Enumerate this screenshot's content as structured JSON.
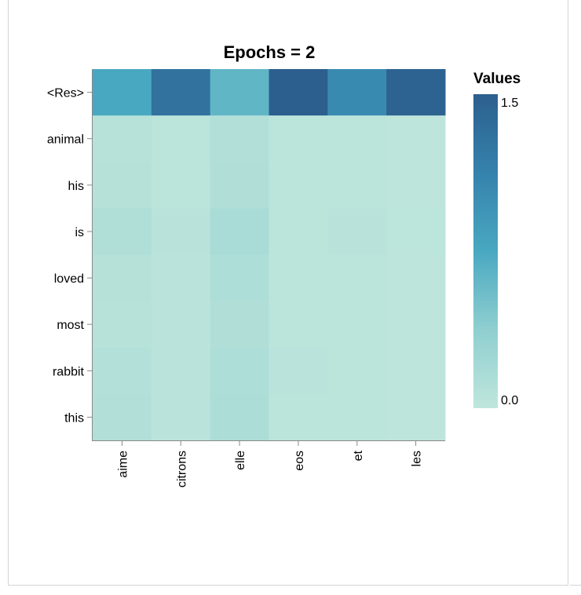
{
  "chart_data": {
    "type": "heatmap",
    "title": "Epochs = 2",
    "x_categories": [
      "aime",
      "citrons",
      "elle",
      "eos",
      "et",
      "les"
    ],
    "y_categories": [
      "<Res>",
      "animal",
      "his",
      "is",
      "loved",
      "most",
      "rabbit",
      "this"
    ],
    "values": [
      [
        0.75,
        1.3,
        0.62,
        1.52,
        1.05,
        1.46
      ],
      [
        0.07,
        0.03,
        0.1,
        0.03,
        0.03,
        0.01
      ],
      [
        0.08,
        0.03,
        0.11,
        0.03,
        0.03,
        0.01
      ],
      [
        0.12,
        0.05,
        0.17,
        0.03,
        0.05,
        0.02
      ],
      [
        0.08,
        0.04,
        0.13,
        0.03,
        0.03,
        0.01
      ],
      [
        0.07,
        0.04,
        0.11,
        0.03,
        0.03,
        0.01
      ],
      [
        0.09,
        0.04,
        0.13,
        0.04,
        0.03,
        0.01
      ],
      [
        0.1,
        0.04,
        0.15,
        0.03,
        0.03,
        0.01
      ]
    ],
    "color_scale": {
      "title": "Values",
      "domain": [
        0.0,
        1.5
      ],
      "tick_labels": [
        "1.5",
        "0.0"
      ],
      "colors": [
        "#bfe6dc",
        "#8fcfd0",
        "#49a8c1",
        "#3582ac",
        "#2c5f8e"
      ]
    },
    "legend_position": "right"
  }
}
